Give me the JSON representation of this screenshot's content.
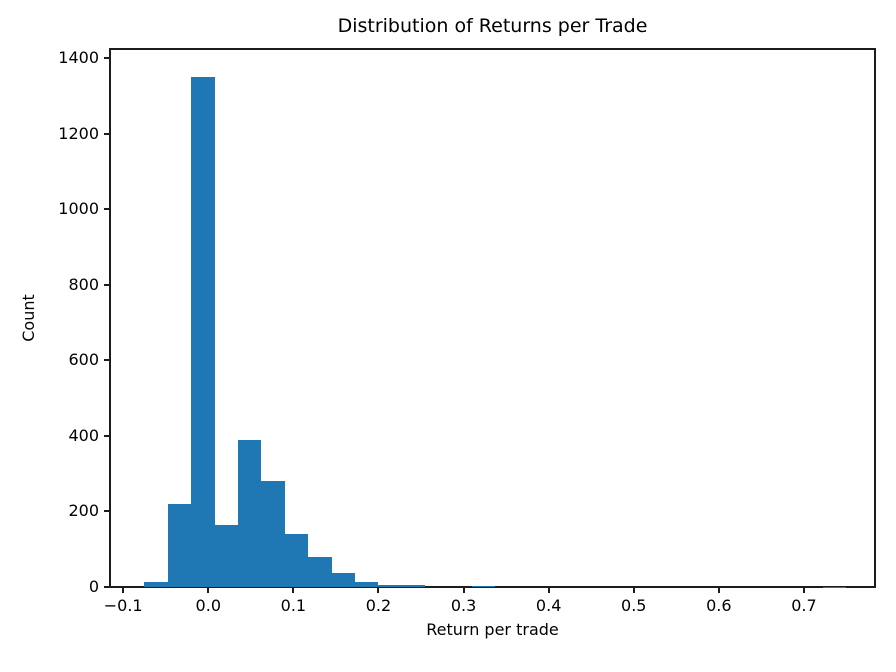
{
  "chart_data": {
    "type": "bar",
    "subtype": "histogram",
    "title": "Distribution of Returns per Trade",
    "xlabel": "Return per trade",
    "ylabel": "Count",
    "bin_start": -0.075,
    "bin_width": 0.0275,
    "counts": [
      13,
      220,
      1350,
      165,
      390,
      280,
      140,
      80,
      37,
      13,
      6,
      6,
      0,
      0,
      3,
      0,
      0,
      0,
      0,
      0,
      0,
      0,
      0,
      0,
      0,
      0,
      0,
      0,
      0,
      1
    ],
    "xlim": [
      -0.1155,
      0.7835
    ],
    "ylim": [
      0,
      1424
    ],
    "xticks": {
      "values": [
        -0.1,
        0.0,
        0.1,
        0.2,
        0.3,
        0.4,
        0.5,
        0.6,
        0.7
      ],
      "labels": [
        "−0.1",
        "0.0",
        "0.1",
        "0.2",
        "0.3",
        "0.4",
        "0.5",
        "0.6",
        "0.7"
      ]
    },
    "yticks": {
      "values": [
        0,
        200,
        400,
        600,
        800,
        1000,
        1200,
        1400
      ],
      "labels": [
        "0",
        "200",
        "400",
        "600",
        "800",
        "1000",
        "1200",
        "1400"
      ]
    },
    "bar_color": "#1f77b4",
    "axis_color": "#1c1c1c",
    "text_color": "#000000",
    "background": "#ffffff",
    "grid": false,
    "legend": null
  }
}
